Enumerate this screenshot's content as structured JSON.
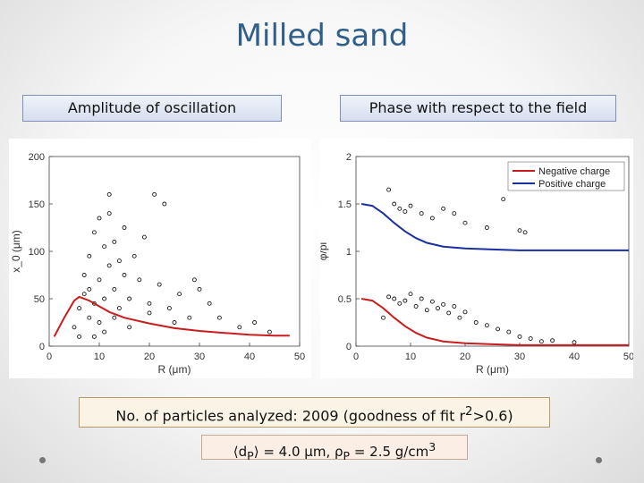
{
  "slide": {
    "title": "Milled sand",
    "left_label": "Amplitude of oscillation",
    "right_label": "Phase with respect to the field",
    "note_prefix": "No. of particles analyzed: 2009 (goodness of fit r",
    "note_sup": "2",
    "note_suffix": ">0.6)",
    "formula_lhs": "⟨d",
    "formula_sub": "P",
    "formula_mid": "⟩ = 4.0 μm, ρ",
    "formula_sub2": "P",
    "formula_rhs": " = 2.5 g/cm",
    "formula_sup": "3"
  },
  "chart_data": [
    {
      "type": "scatter",
      "xlabel": "R (μm)",
      "ylabel": "x_0 (μm)",
      "xlim": [
        0,
        50
      ],
      "ylim": [
        0,
        200
      ],
      "xticks": [
        "0",
        "10",
        "20",
        "30",
        "40",
        "50"
      ],
      "yticks": [
        "0",
        "50",
        "100",
        "150",
        "200"
      ],
      "series": [
        {
          "name": "particles",
          "color": "#1a1a1a",
          "points": [
            [
              5,
              20
            ],
            [
              6,
              40
            ],
            [
              7,
              55
            ],
            [
              7,
              75
            ],
            [
              8,
              60
            ],
            [
              8,
              95
            ],
            [
              9,
              45
            ],
            [
              9,
              120
            ],
            [
              10,
              70
            ],
            [
              10,
              135
            ],
            [
              11,
              50
            ],
            [
              11,
              105
            ],
            [
              12,
              85
            ],
            [
              12,
              140
            ],
            [
              13,
              60
            ],
            [
              13,
              110
            ],
            [
              14,
              40
            ],
            [
              14,
              90
            ],
            [
              15,
              75
            ],
            [
              15,
              125
            ],
            [
              16,
              50
            ],
            [
              17,
              95
            ],
            [
              18,
              70
            ],
            [
              19,
              115
            ],
            [
              20,
              45
            ],
            [
              21,
              160
            ],
            [
              22,
              65
            ],
            [
              23,
              150
            ],
            [
              24,
              40
            ],
            [
              26,
              55
            ],
            [
              28,
              30
            ],
            [
              30,
              60
            ],
            [
              32,
              45
            ],
            [
              34,
              30
            ],
            [
              38,
              20
            ],
            [
              41,
              25
            ],
            [
              44,
              15
            ],
            [
              12,
              160
            ],
            [
              8,
              30
            ],
            [
              10,
              25
            ],
            [
              13,
              30
            ],
            [
              16,
              20
            ],
            [
              6,
              10
            ],
            [
              9,
              10
            ],
            [
              11,
              15
            ],
            [
              20,
              35
            ],
            [
              29,
              70
            ],
            [
              25,
              25
            ]
          ]
        },
        {
          "name": "fit",
          "color": "#c91d1d",
          "points": [
            [
              1,
              10
            ],
            [
              3,
              30
            ],
            [
              5,
              48
            ],
            [
              6,
              52
            ],
            [
              8,
              48
            ],
            [
              10,
              42
            ],
            [
              12,
              36
            ],
            [
              15,
              30
            ],
            [
              20,
              24
            ],
            [
              25,
              19
            ],
            [
              30,
              16
            ],
            [
              35,
              14
            ],
            [
              40,
              12
            ],
            [
              45,
              11
            ],
            [
              48,
              11
            ]
          ]
        }
      ]
    },
    {
      "type": "scatter",
      "xlabel": "R (μm)",
      "ylabel": "φ/pi",
      "xlim": [
        0,
        50
      ],
      "ylim": [
        0,
        2
      ],
      "xticks": [
        "0",
        "10",
        "20",
        "30",
        "40",
        "50"
      ],
      "yticks": [
        "0",
        "0.5",
        "1",
        "1.5",
        "2"
      ],
      "legend": [
        {
          "label": "Negative charge",
          "color": "#c91d1d"
        },
        {
          "label": "Positive charge",
          "color": "#1c2f9e"
        }
      ],
      "series": [
        {
          "name": "particles",
          "color": "#1a1a1a",
          "points": [
            [
              5,
              0.3
            ],
            [
              6,
              0.52
            ],
            [
              7,
              0.5
            ],
            [
              8,
              0.45
            ],
            [
              9,
              0.48
            ],
            [
              10,
              0.55
            ],
            [
              11,
              0.42
            ],
            [
              12,
              0.5
            ],
            [
              13,
              0.38
            ],
            [
              14,
              0.47
            ],
            [
              15,
              0.4
            ],
            [
              16,
              0.44
            ],
            [
              17,
              0.35
            ],
            [
              18,
              0.42
            ],
            [
              19,
              0.3
            ],
            [
              20,
              0.36
            ],
            [
              22,
              0.25
            ],
            [
              24,
              0.22
            ],
            [
              26,
              0.18
            ],
            [
              28,
              0.15
            ],
            [
              30,
              0.1
            ],
            [
              32,
              0.08
            ],
            [
              34,
              0.05
            ],
            [
              36,
              0.06
            ],
            [
              40,
              0.04
            ],
            [
              6,
              1.65
            ],
            [
              7,
              1.5
            ],
            [
              8,
              1.45
            ],
            [
              9,
              1.42
            ],
            [
              10,
              1.48
            ],
            [
              12,
              1.4
            ],
            [
              14,
              1.35
            ],
            [
              16,
              1.45
            ],
            [
              18,
              1.4
            ],
            [
              20,
              1.3
            ],
            [
              30,
              1.22
            ],
            [
              31,
              1.2
            ],
            [
              27,
              1.55
            ],
            [
              24,
              1.25
            ]
          ]
        },
        {
          "name": "Negative charge",
          "color": "#c91d1d",
          "points": [
            [
              1,
              0.5
            ],
            [
              3,
              0.48
            ],
            [
              5,
              0.4
            ],
            [
              7,
              0.3
            ],
            [
              9,
              0.21
            ],
            [
              11,
              0.14
            ],
            [
              13,
              0.09
            ],
            [
              16,
              0.05
            ],
            [
              20,
              0.03
            ],
            [
              25,
              0.02
            ],
            [
              30,
              0.01
            ],
            [
              40,
              0.01
            ],
            [
              50,
              0.01
            ]
          ]
        },
        {
          "name": "Positive charge",
          "color": "#1c2f9e",
          "points": [
            [
              1,
              1.5
            ],
            [
              3,
              1.48
            ],
            [
              5,
              1.4
            ],
            [
              7,
              1.3
            ],
            [
              9,
              1.21
            ],
            [
              11,
              1.14
            ],
            [
              13,
              1.09
            ],
            [
              16,
              1.05
            ],
            [
              20,
              1.03
            ],
            [
              25,
              1.02
            ],
            [
              30,
              1.01
            ],
            [
              40,
              1.01
            ],
            [
              50,
              1.01
            ]
          ]
        }
      ]
    }
  ]
}
